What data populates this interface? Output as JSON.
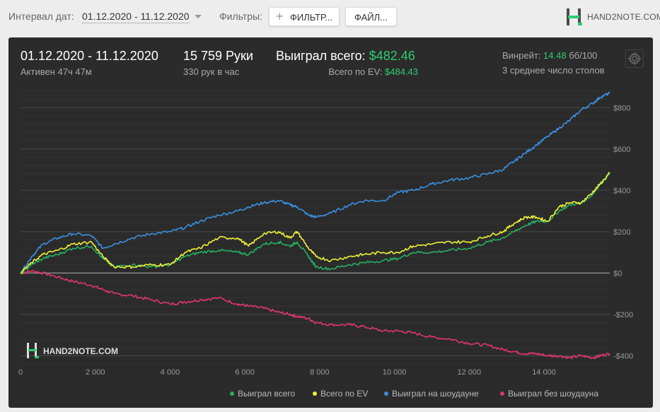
{
  "toolbar": {
    "interval_label": "Интервал дат:",
    "date_range": "01.12.2020 - 11.12.2020",
    "filters_label": "Фильтры:",
    "filter_button": "ФИЛЬТР...",
    "file_button": "ФАЙЛ...",
    "logo_text": "HAND2NOTE.COM"
  },
  "summary": {
    "date_range": "01.12.2020 - 11.12.2020",
    "active": "Активен 47ч 47м",
    "hands": "15 759 Руки",
    "hands_rate": "330 рук в час",
    "won_label": "Выиграл всего:",
    "won_value": "$482.46",
    "ev_label": "Всего по EV:",
    "ev_value": "$484.43",
    "winrate_label": "Винрейт:",
    "winrate_value": "14.48",
    "winrate_unit": "бб/100",
    "avg_tables": "3 среднее число столов"
  },
  "watermark": "HAND2NOTE.COM",
  "colors": {
    "won": "#27ae60",
    "ev": "#f1f13a",
    "showdown": "#3b8fe0",
    "no_showdown": "#e0366e",
    "green_text": "#2ecc71"
  },
  "chart_data": {
    "type": "line",
    "title": "",
    "xlabel": "",
    "ylabel": "",
    "xlim": [
      0,
      15759
    ],
    "ylim": [
      -450,
      900
    ],
    "x_ticks": [
      0,
      2000,
      4000,
      6000,
      8000,
      10000,
      12000,
      14000
    ],
    "x_tick_labels": [
      "0",
      "2 000",
      "4 000",
      "6 000",
      "8 000",
      "10 000",
      "12 000",
      "14 000"
    ],
    "y_ticks": [
      -400,
      -200,
      0,
      200,
      400,
      600,
      800
    ],
    "y_tick_labels": [
      "-$400",
      "-$200",
      "$0",
      "$200",
      "$400",
      "$600",
      "$800"
    ],
    "grid": true,
    "legend": "bottom-right",
    "series": [
      {
        "name": "Выиграл всего",
        "key": "won",
        "x": [
          0,
          300,
          600,
          1000,
          1400,
          1900,
          2200,
          2500,
          3000,
          3500,
          4000,
          4400,
          4800,
          5300,
          5800,
          6100,
          6500,
          6900,
          7200,
          7400,
          7700,
          7900,
          8300,
          8800,
          9200,
          9700,
          10100,
          10500,
          11000,
          11500,
          12000,
          12500,
          12900,
          13200,
          13500,
          13800,
          14100,
          14400,
          14700,
          15000,
          15300,
          15500,
          15759
        ],
        "values": [
          0,
          40,
          70,
          90,
          120,
          130,
          70,
          30,
          40,
          30,
          40,
          80,
          100,
          110,
          100,
          90,
          140,
          150,
          130,
          150,
          80,
          30,
          20,
          40,
          50,
          60,
          70,
          100,
          100,
          110,
          120,
          150,
          170,
          200,
          230,
          250,
          250,
          300,
          330,
          340,
          380,
          430,
          482
        ]
      },
      {
        "name": "Всего по EV",
        "key": "ev",
        "x": [
          0,
          300,
          600,
          1000,
          1400,
          1900,
          2200,
          2500,
          3000,
          3500,
          4000,
          4400,
          4800,
          5300,
          5800,
          6100,
          6500,
          6900,
          7200,
          7400,
          7700,
          7900,
          8300,
          8800,
          9200,
          9700,
          10100,
          10500,
          11000,
          11500,
          12000,
          12500,
          12900,
          13200,
          13500,
          13800,
          14100,
          14400,
          14700,
          15000,
          15300,
          15500,
          15759
        ],
        "values": [
          0,
          50,
          90,
          110,
          140,
          150,
          80,
          30,
          30,
          40,
          40,
          100,
          120,
          170,
          170,
          130,
          190,
          200,
          170,
          200,
          120,
          80,
          60,
          80,
          90,
          100,
          100,
          130,
          140,
          150,
          150,
          180,
          200,
          240,
          270,
          270,
          250,
          320,
          340,
          340,
          390,
          430,
          484
        ]
      },
      {
        "name": "Выиграл на шоудауне",
        "key": "showdown",
        "x": [
          0,
          300,
          600,
          1000,
          1400,
          1900,
          2200,
          2500,
          3000,
          3500,
          4000,
          4400,
          4800,
          5300,
          5800,
          6100,
          6500,
          6900,
          7200,
          7400,
          7700,
          7900,
          8300,
          8800,
          9200,
          9700,
          10100,
          10500,
          11000,
          11500,
          12000,
          12500,
          12900,
          13200,
          13500,
          13800,
          14100,
          14400,
          14700,
          15000,
          15300,
          15500,
          15759
        ],
        "values": [
          0,
          80,
          140,
          170,
          190,
          180,
          120,
          140,
          170,
          190,
          200,
          220,
          250,
          280,
          300,
          320,
          340,
          350,
          330,
          320,
          280,
          270,
          290,
          330,
          350,
          350,
          390,
          400,
          430,
          450,
          460,
          480,
          500,
          540,
          580,
          620,
          660,
          700,
          740,
          790,
          820,
          850,
          870
        ]
      },
      {
        "name": "Выиграл без шоудауна",
        "key": "no_showdown",
        "x": [
          0,
          300,
          600,
          1000,
          1400,
          1900,
          2200,
          2500,
          3000,
          3500,
          4000,
          4400,
          4800,
          5300,
          5800,
          6100,
          6500,
          6900,
          7200,
          7400,
          7700,
          7900,
          8300,
          8800,
          9200,
          9700,
          10100,
          10500,
          11000,
          11500,
          12000,
          12500,
          12900,
          13200,
          13500,
          13800,
          14100,
          14400,
          14700,
          15000,
          15300,
          15500,
          15759
        ],
        "values": [
          0,
          10,
          0,
          -20,
          -40,
          -60,
          -80,
          -100,
          -110,
          -130,
          -150,
          -140,
          -130,
          -120,
          -150,
          -160,
          -170,
          -190,
          -200,
          -210,
          -220,
          -240,
          -250,
          -250,
          -260,
          -280,
          -280,
          -290,
          -310,
          -320,
          -340,
          -350,
          -370,
          -380,
          -390,
          -390,
          -400,
          -400,
          -410,
          -400,
          -410,
          -400,
          -390
        ]
      }
    ]
  }
}
